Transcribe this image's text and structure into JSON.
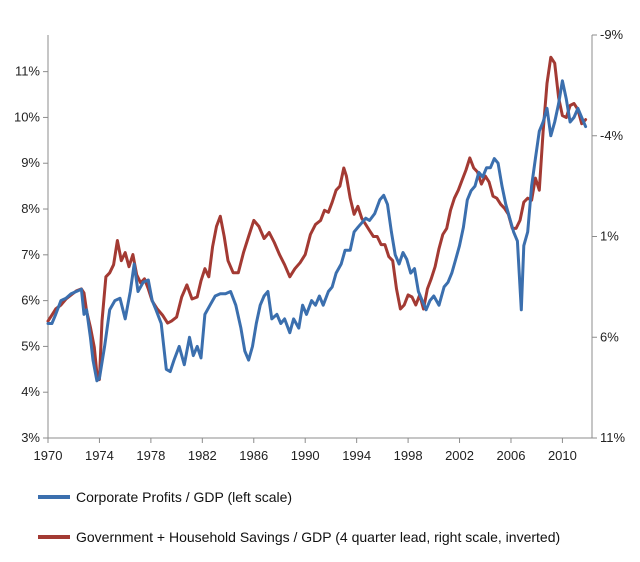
{
  "chart_data": {
    "type": "line",
    "title": "",
    "xlabel": "",
    "ylabel": "",
    "x_ticks": [
      "1970",
      "1974",
      "1978",
      "1982",
      "1986",
      "1990",
      "1994",
      "1998",
      "2002",
      "2006",
      "2010"
    ],
    "y_left": {
      "ticks": [
        "3%",
        "4%",
        "5%",
        "6%",
        "7%",
        "8%",
        "9%",
        "10%",
        "11%"
      ],
      "range": [
        3,
        11.8
      ]
    },
    "y_right": {
      "ticks": [
        "-9%",
        "-4%",
        "1%",
        "6%",
        "11%"
      ],
      "range": [
        -9,
        11
      ],
      "inverted": true
    },
    "grid": false,
    "legend_position": "bottom",
    "series": [
      {
        "name": "Corporate Profits / GDP (left scale)",
        "color": "#3b6fae",
        "axis": "left",
        "points": [
          [
            1970.0,
            5.5
          ],
          [
            1970.3,
            5.5
          ],
          [
            1970.6,
            5.7
          ],
          [
            1971.0,
            6.0
          ],
          [
            1971.4,
            6.05
          ],
          [
            1971.8,
            6.15
          ],
          [
            1972.2,
            6.2
          ],
          [
            1972.6,
            6.25
          ],
          [
            1972.8,
            5.7
          ],
          [
            1973.0,
            5.8
          ],
          [
            1973.3,
            5.2
          ],
          [
            1973.5,
            4.7
          ],
          [
            1973.8,
            4.25
          ],
          [
            1974.0,
            4.3
          ],
          [
            1974.4,
            5.0
          ],
          [
            1974.8,
            5.8
          ],
          [
            1975.2,
            6.0
          ],
          [
            1975.6,
            6.05
          ],
          [
            1976.0,
            5.6
          ],
          [
            1976.4,
            6.2
          ],
          [
            1976.7,
            6.8
          ],
          [
            1977.0,
            6.2
          ],
          [
            1977.4,
            6.4
          ],
          [
            1977.8,
            6.45
          ],
          [
            1978.1,
            6.0
          ],
          [
            1978.4,
            5.8
          ],
          [
            1978.8,
            5.5
          ],
          [
            1979.2,
            4.5
          ],
          [
            1979.5,
            4.45
          ],
          [
            1979.8,
            4.7
          ],
          [
            1980.2,
            5.0
          ],
          [
            1980.6,
            4.6
          ],
          [
            1981.0,
            5.2
          ],
          [
            1981.3,
            4.8
          ],
          [
            1981.6,
            5.0
          ],
          [
            1981.9,
            4.75
          ],
          [
            1982.2,
            5.7
          ],
          [
            1982.6,
            5.9
          ],
          [
            1983.0,
            6.1
          ],
          [
            1983.4,
            6.15
          ],
          [
            1983.8,
            6.15
          ],
          [
            1984.2,
            6.2
          ],
          [
            1984.6,
            5.9
          ],
          [
            1985.0,
            5.4
          ],
          [
            1985.3,
            4.9
          ],
          [
            1985.6,
            4.7
          ],
          [
            1985.9,
            5.0
          ],
          [
            1986.2,
            5.5
          ],
          [
            1986.5,
            5.9
          ],
          [
            1986.8,
            6.1
          ],
          [
            1987.1,
            6.2
          ],
          [
            1987.4,
            5.6
          ],
          [
            1987.8,
            5.7
          ],
          [
            1988.1,
            5.5
          ],
          [
            1988.4,
            5.6
          ],
          [
            1988.8,
            5.3
          ],
          [
            1989.1,
            5.6
          ],
          [
            1989.5,
            5.4
          ],
          [
            1989.8,
            5.9
          ],
          [
            1990.1,
            5.7
          ],
          [
            1990.5,
            6.0
          ],
          [
            1990.8,
            5.9
          ],
          [
            1991.1,
            6.1
          ],
          [
            1991.4,
            5.9
          ],
          [
            1991.8,
            6.2
          ],
          [
            1992.1,
            6.3
          ],
          [
            1992.4,
            6.6
          ],
          [
            1992.8,
            6.8
          ],
          [
            1993.1,
            7.1
          ],
          [
            1993.5,
            7.1
          ],
          [
            1993.8,
            7.5
          ],
          [
            1994.1,
            7.6
          ],
          [
            1994.4,
            7.7
          ],
          [
            1994.7,
            7.8
          ],
          [
            1995.0,
            7.75
          ],
          [
            1995.4,
            7.9
          ],
          [
            1995.8,
            8.2
          ],
          [
            1996.1,
            8.3
          ],
          [
            1996.4,
            8.1
          ],
          [
            1996.7,
            7.5
          ],
          [
            1997.0,
            7.0
          ],
          [
            1997.3,
            6.8
          ],
          [
            1997.6,
            7.05
          ],
          [
            1997.9,
            6.9
          ],
          [
            1998.2,
            6.6
          ],
          [
            1998.5,
            6.7
          ],
          [
            1998.8,
            6.2
          ],
          [
            1999.1,
            6.0
          ],
          [
            1999.4,
            5.8
          ],
          [
            1999.7,
            6.0
          ],
          [
            2000.0,
            6.1
          ],
          [
            2000.4,
            5.9
          ],
          [
            2000.8,
            6.3
          ],
          [
            2001.1,
            6.4
          ],
          [
            2001.4,
            6.6
          ],
          [
            2001.7,
            6.9
          ],
          [
            2002.0,
            7.2
          ],
          [
            2002.3,
            7.6
          ],
          [
            2002.6,
            8.2
          ],
          [
            2002.9,
            8.4
          ],
          [
            2003.2,
            8.5
          ],
          [
            2003.5,
            8.8
          ],
          [
            2003.8,
            8.7
          ],
          [
            2004.1,
            8.9
          ],
          [
            2004.4,
            8.9
          ],
          [
            2004.7,
            9.1
          ],
          [
            2005.0,
            9.0
          ],
          [
            2005.3,
            8.5
          ],
          [
            2005.6,
            8.1
          ],
          [
            2005.9,
            7.8
          ],
          [
            2006.2,
            7.5
          ],
          [
            2006.5,
            7.3
          ],
          [
            2006.8,
            5.8
          ],
          [
            2007.0,
            7.2
          ],
          [
            2007.3,
            7.5
          ],
          [
            2007.6,
            8.5
          ],
          [
            2007.9,
            9.1
          ],
          [
            2008.2,
            9.7
          ],
          [
            2008.5,
            9.9
          ],
          [
            2008.8,
            10.2
          ],
          [
            2009.1,
            9.6
          ],
          [
            2009.4,
            9.9
          ],
          [
            2009.7,
            10.3
          ],
          [
            2010.0,
            10.8
          ],
          [
            2010.3,
            10.4
          ],
          [
            2010.6,
            9.9
          ],
          [
            2010.9,
            10.0
          ],
          [
            2011.2,
            10.2
          ],
          [
            2011.5,
            10.0
          ],
          [
            2011.8,
            9.8
          ]
        ]
      },
      {
        "name": "Government + Household Savings / GDP (4 quarter lead, right scale, inverted)",
        "color": "#a33a33",
        "axis": "right",
        "points": [
          [
            1970.0,
            5.2
          ],
          [
            1970.3,
            4.9
          ],
          [
            1970.6,
            4.6
          ],
          [
            1971.0,
            4.4
          ],
          [
            1971.4,
            4.1
          ],
          [
            1971.8,
            3.9
          ],
          [
            1972.2,
            3.7
          ],
          [
            1972.6,
            3.6
          ],
          [
            1972.8,
            3.8
          ],
          [
            1973.0,
            4.7
          ],
          [
            1973.3,
            5.5
          ],
          [
            1973.6,
            6.5
          ],
          [
            1973.8,
            7.8
          ],
          [
            1974.0,
            8.1
          ],
          [
            1974.2,
            5.2
          ],
          [
            1974.5,
            3.0
          ],
          [
            1974.8,
            2.8
          ],
          [
            1975.1,
            2.4
          ],
          [
            1975.4,
            1.2
          ],
          [
            1975.7,
            2.2
          ],
          [
            1976.0,
            1.8
          ],
          [
            1976.3,
            2.5
          ],
          [
            1976.6,
            1.9
          ],
          [
            1976.9,
            2.9
          ],
          [
            1977.2,
            3.3
          ],
          [
            1977.5,
            3.1
          ],
          [
            1977.8,
            3.6
          ],
          [
            1978.1,
            4.2
          ],
          [
            1978.5,
            4.6
          ],
          [
            1978.9,
            4.9
          ],
          [
            1979.3,
            5.3
          ],
          [
            1979.6,
            5.2
          ],
          [
            1980.0,
            5.0
          ],
          [
            1980.4,
            4.0
          ],
          [
            1980.8,
            3.4
          ],
          [
            1981.2,
            4.1
          ],
          [
            1981.6,
            4.0
          ],
          [
            1981.9,
            3.2
          ],
          [
            1982.2,
            2.6
          ],
          [
            1982.5,
            3.0
          ],
          [
            1982.8,
            1.5
          ],
          [
            1983.1,
            0.5
          ],
          [
            1983.4,
            0.0
          ],
          [
            1983.7,
            1.0
          ],
          [
            1984.0,
            2.2
          ],
          [
            1984.4,
            2.8
          ],
          [
            1984.8,
            2.8
          ],
          [
            1985.2,
            1.8
          ],
          [
            1985.6,
            1.0
          ],
          [
            1986.0,
            0.2
          ],
          [
            1986.4,
            0.5
          ],
          [
            1986.8,
            1.1
          ],
          [
            1987.2,
            0.8
          ],
          [
            1987.6,
            1.3
          ],
          [
            1988.0,
            1.9
          ],
          [
            1988.4,
            2.4
          ],
          [
            1988.8,
            3.0
          ],
          [
            1989.2,
            2.6
          ],
          [
            1989.6,
            2.3
          ],
          [
            1990.0,
            1.9
          ],
          [
            1990.4,
            0.9
          ],
          [
            1990.8,
            0.4
          ],
          [
            1991.2,
            0.2
          ],
          [
            1991.5,
            -0.3
          ],
          [
            1991.8,
            -0.2
          ],
          [
            1992.1,
            -0.7
          ],
          [
            1992.4,
            -1.3
          ],
          [
            1992.7,
            -1.5
          ],
          [
            1993.0,
            -2.4
          ],
          [
            1993.2,
            -2.0
          ],
          [
            1993.5,
            -0.9
          ],
          [
            1993.8,
            -0.1
          ],
          [
            1994.1,
            -0.5
          ],
          [
            1994.4,
            0.1
          ],
          [
            1994.7,
            0.4
          ],
          [
            1995.0,
            0.7
          ],
          [
            1995.3,
            1.0
          ],
          [
            1995.6,
            1.0
          ],
          [
            1995.9,
            1.4
          ],
          [
            1996.2,
            1.4
          ],
          [
            1996.5,
            2.0
          ],
          [
            1996.8,
            2.2
          ],
          [
            1997.1,
            3.6
          ],
          [
            1997.4,
            4.6
          ],
          [
            1997.7,
            4.4
          ],
          [
            1998.0,
            3.9
          ],
          [
            1998.3,
            4.0
          ],
          [
            1998.6,
            4.4
          ],
          [
            1998.9,
            3.9
          ],
          [
            1999.2,
            4.6
          ],
          [
            1999.5,
            3.6
          ],
          [
            1999.8,
            3.1
          ],
          [
            2000.1,
            2.5
          ],
          [
            2000.4,
            1.6
          ],
          [
            2000.7,
            0.9
          ],
          [
            2001.0,
            0.6
          ],
          [
            2001.3,
            -0.3
          ],
          [
            2001.6,
            -0.9
          ],
          [
            2001.9,
            -1.3
          ],
          [
            2002.2,
            -1.8
          ],
          [
            2002.5,
            -2.3
          ],
          [
            2002.8,
            -2.9
          ],
          [
            2003.1,
            -2.4
          ],
          [
            2003.4,
            -2.2
          ],
          [
            2003.7,
            -1.6
          ],
          [
            2004.0,
            -2.0
          ],
          [
            2004.3,
            -1.7
          ],
          [
            2004.6,
            -1.0
          ],
          [
            2004.9,
            -0.9
          ],
          [
            2005.2,
            -0.6
          ],
          [
            2005.5,
            -0.4
          ],
          [
            2005.8,
            -0.1
          ],
          [
            2006.1,
            0.6
          ],
          [
            2006.4,
            0.6
          ],
          [
            2006.7,
            0.2
          ],
          [
            2007.0,
            -0.7
          ],
          [
            2007.3,
            -0.9
          ],
          [
            2007.6,
            -0.8
          ],
          [
            2007.9,
            -1.9
          ],
          [
            2008.2,
            -1.3
          ],
          [
            2008.5,
            -4.2
          ],
          [
            2008.8,
            -6.6
          ],
          [
            2009.1,
            -7.9
          ],
          [
            2009.4,
            -7.6
          ],
          [
            2009.7,
            -5.9
          ],
          [
            2010.0,
            -5.0
          ],
          [
            2010.3,
            -4.9
          ],
          [
            2010.6,
            -5.5
          ],
          [
            2010.9,
            -5.6
          ],
          [
            2011.2,
            -5.3
          ],
          [
            2011.5,
            -4.6
          ],
          [
            2011.8,
            -4.8
          ]
        ]
      }
    ]
  }
}
